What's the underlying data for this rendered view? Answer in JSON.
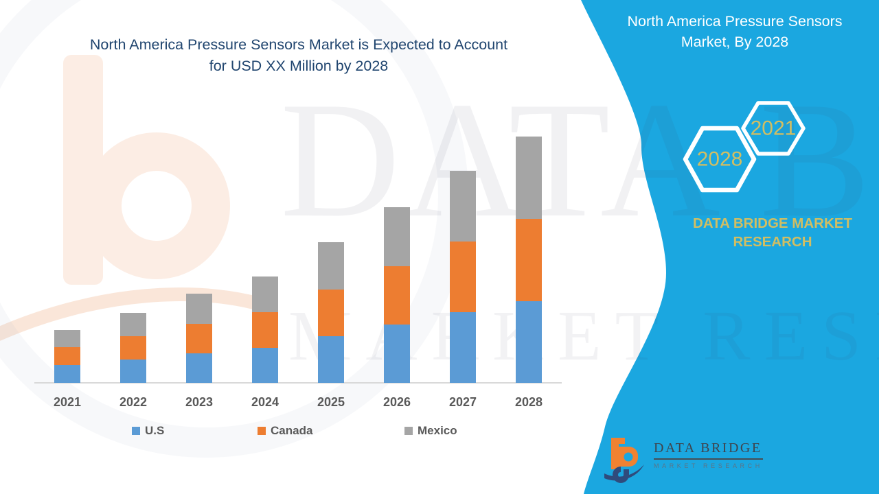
{
  "title": {
    "line1": "North America Pressure Sensors Market is Expected to Account",
    "line2": "for USD XX Million by 2028",
    "color": "#20456F"
  },
  "side_panel": {
    "bg_color": "#1BA7E0",
    "heading_line1": "North America Pressure Sensors",
    "heading_line2": "Market, By 2028",
    "hexagons": [
      {
        "label": "2028"
      },
      {
        "label": "2021"
      }
    ],
    "caption_line1": "DATA BRIDGE MARKET",
    "caption_line2": "RESEARCH",
    "gold_color": "#D2BE62",
    "logo": {
      "wordmark": "DATA BRIDGE",
      "tagline": "MARKET RESEARCH"
    }
  },
  "watermark": {
    "line1": "DATA BRIDGE",
    "line2": "MARKET RESEARCH"
  },
  "chart_data": {
    "type": "bar",
    "stacked": true,
    "title": "North America Pressure Sensors Market is Expected to Account for USD XX Million by 2028",
    "xlabel": "",
    "ylabel": "",
    "grid": false,
    "legend_position": "bottom",
    "axis_line_color": "#D9D9D9",
    "label_color": "#595959",
    "categories": [
      "2021",
      "2022",
      "2023",
      "2024",
      "2025",
      "2026",
      "2027",
      "2028"
    ],
    "series": [
      {
        "name": "U.S",
        "color": "#5B9BD5",
        "values": [
          26,
          34,
          43,
          51,
          68,
          85,
          103,
          119
        ]
      },
      {
        "name": "Canada",
        "color": "#ED7D31",
        "values": [
          26,
          34,
          43,
          52,
          68,
          85,
          103,
          120
        ]
      },
      {
        "name": "Mexico",
        "color": "#A5A5A5",
        "values": [
          25,
          34,
          44,
          52,
          69,
          86,
          103,
          120
        ]
      }
    ],
    "value_note": "relative units (axis unlabeled, values shown as XX)"
  }
}
